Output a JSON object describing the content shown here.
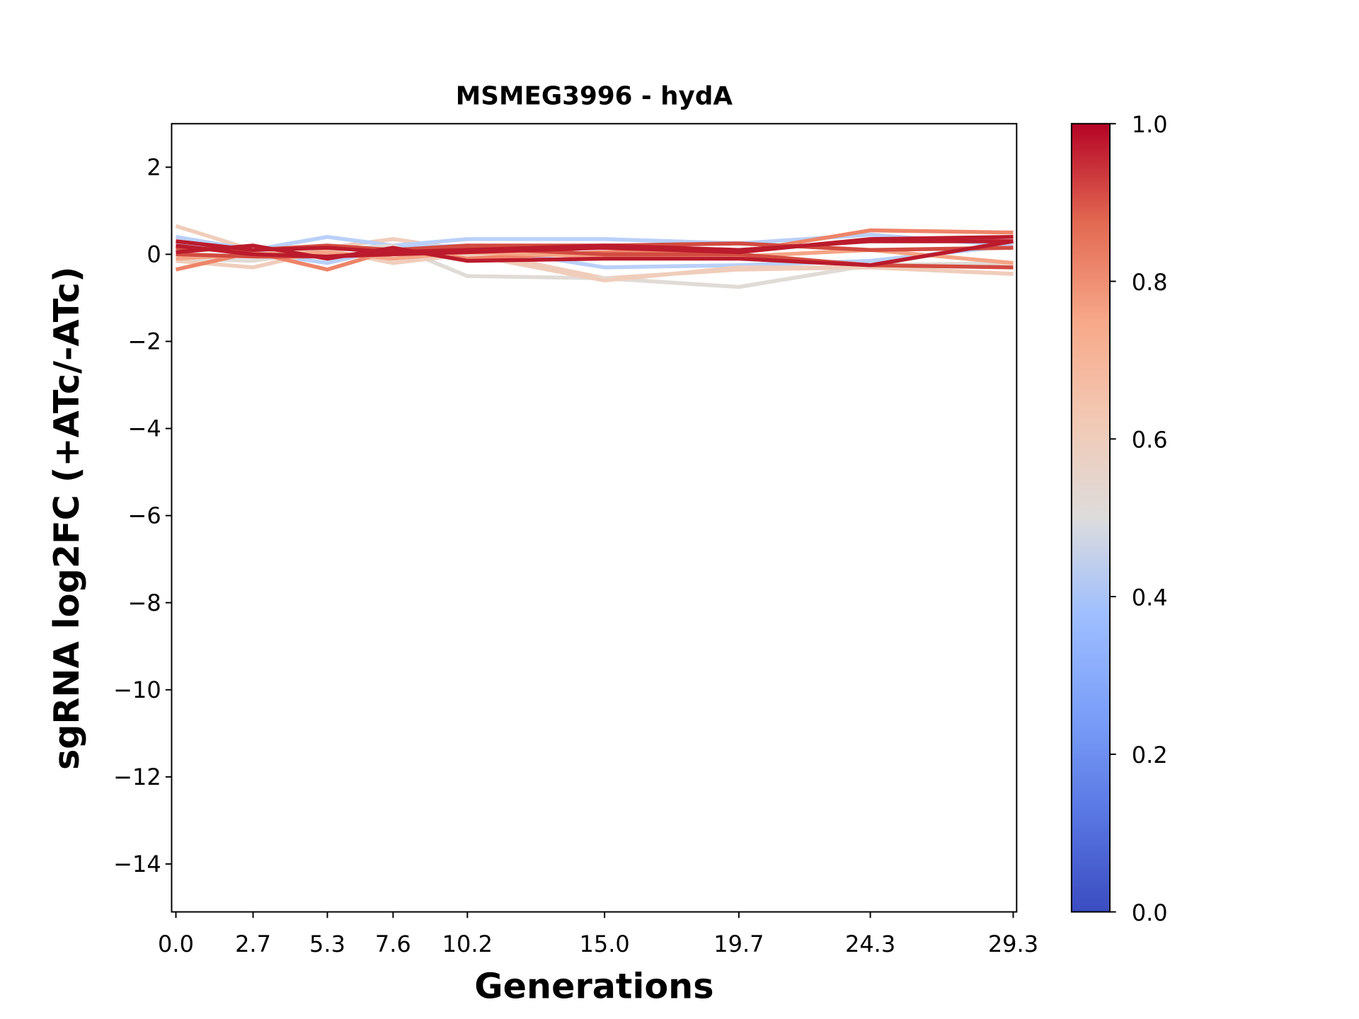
{
  "chart_data": {
    "type": "line",
    "title": "MSMEG3996 - hydA",
    "xlabel": "Generations",
    "ylabel": "sgRNA log2FC (+ATc/-ATc)",
    "x": [
      0.0,
      2.7,
      5.3,
      7.6,
      10.2,
      15.0,
      19.7,
      24.3,
      29.3
    ],
    "x_tick_labels": [
      "0.0",
      "2.7",
      "5.3",
      "7.6",
      "10.2",
      "15.0",
      "19.7",
      "24.3",
      "29.3"
    ],
    "y_ticks": [
      2,
      0,
      -2,
      -4,
      -6,
      -8,
      -10,
      -12,
      -14
    ],
    "y_tick_labels": [
      "2",
      "0",
      "−2",
      "−4",
      "−6",
      "−8",
      "−10",
      "−12",
      "−14"
    ],
    "ylim": [
      -15.1,
      3
    ],
    "xlim": [
      -0.15,
      29.42
    ],
    "grid": false,
    "colormap": "coolwarm",
    "colorbar": {
      "range": [
        0,
        1
      ],
      "ticks": [
        "0.0",
        "0.2",
        "0.4",
        "0.6",
        "0.8",
        "1.0"
      ]
    },
    "series": [
      {
        "color_value": 0.6,
        "color": "#f0cdbb",
        "values": [
          0.65,
          0.1,
          0.15,
          0.35,
          0.1,
          -0.55,
          -0.35,
          -0.3,
          -0.45
        ]
      },
      {
        "color_value": 0.38,
        "color": "#b9d0f9",
        "values": [
          0.4,
          0.1,
          0.4,
          0.2,
          0.35,
          0.35,
          0.25,
          0.45,
          0.2
        ]
      },
      {
        "color_value": 0.38,
        "color": "#b9d0f9",
        "values": [
          0.25,
          0.05,
          -0.2,
          0.15,
          0.2,
          -0.3,
          -0.25,
          -0.15,
          0.2
        ]
      },
      {
        "color_value": 0.52,
        "color": "#e0dbd6",
        "values": [
          -0.1,
          -0.15,
          0.1,
          0.2,
          -0.5,
          -0.55,
          -0.75,
          -0.25,
          -0.2
        ]
      },
      {
        "color_value": 0.6,
        "color": "#f0cdbb",
        "values": [
          -0.15,
          -0.3,
          0.1,
          -0.2,
          0.0,
          -0.6,
          -0.3,
          -0.3,
          -0.45
        ]
      },
      {
        "color_value": 0.8,
        "color": "#ee8468",
        "values": [
          -0.35,
          0.05,
          -0.35,
          0.1,
          -0.1,
          0.05,
          0.05,
          0.55,
          0.5
        ]
      },
      {
        "color_value": 0.72,
        "color": "#f5a586",
        "values": [
          -0.1,
          0.0,
          0.05,
          -0.1,
          0.05,
          -0.05,
          -0.05,
          0.1,
          -0.2
        ]
      },
      {
        "color_value": 0.88,
        "color": "#d24b40",
        "values": [
          0.15,
          0.1,
          0.2,
          0.1,
          0.2,
          0.2,
          0.25,
          0.1,
          0.15
        ]
      },
      {
        "color_value": 0.88,
        "color": "#d24b40",
        "values": [
          0.0,
          -0.05,
          -0.05,
          0.05,
          0.15,
          0.0,
          0.0,
          -0.25,
          -0.3
        ]
      },
      {
        "color_value": 0.97,
        "color": "#bb1b2c",
        "values": [
          0.2,
          0.0,
          -0.05,
          0.0,
          0.05,
          0.15,
          0.05,
          0.35,
          0.4
        ]
      },
      {
        "color_value": 0.97,
        "color": "#bb1b2c",
        "values": [
          0.05,
          0.2,
          -0.1,
          0.15,
          -0.15,
          -0.1,
          -0.1,
          -0.25,
          0.3
        ]
      },
      {
        "color_value": 0.97,
        "color": "#bb1b2c",
        "values": [
          0.3,
          0.1,
          0.15,
          0.05,
          0.1,
          0.2,
          0.1,
          0.3,
          0.3
        ]
      }
    ]
  }
}
